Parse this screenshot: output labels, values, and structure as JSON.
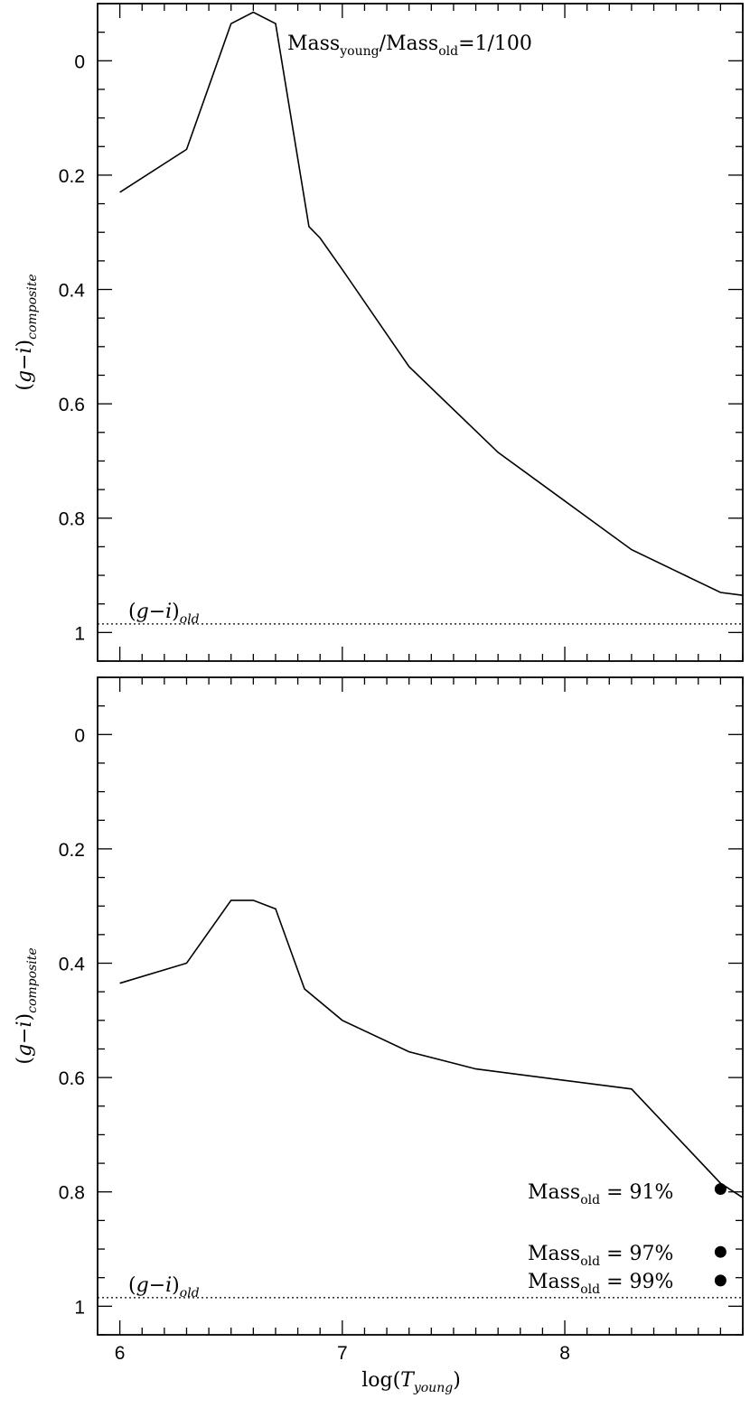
{
  "chart_data": [
    {
      "type": "line",
      "panel": "top",
      "title": "",
      "annotation": {
        "base": "Mass",
        "sub1": "young",
        "mid": "/Mass",
        "sub2": "old",
        "tail": "=1/100"
      },
      "ylabel": {
        "open": "(",
        "g": "g",
        "minus": "−",
        "i": "i",
        "close": ")",
        "sub": "composite"
      },
      "xlabel": "",
      "xlim": [
        5.9,
        8.8
      ],
      "ylim": [
        1.05,
        -0.1
      ],
      "x_ticks": [
        6,
        7,
        8
      ],
      "y_ticks": [
        0,
        0.2,
        0.4,
        0.6,
        0.8,
        1
      ],
      "y_tick_labels": [
        "0",
        "0.2",
        "0.4",
        "0.6",
        "0.8",
        "1"
      ],
      "series": [
        {
          "x": [
            6.0,
            6.3,
            6.5,
            6.6,
            6.7,
            6.85,
            6.9,
            7.0,
            7.3,
            7.7,
            8.0,
            8.3,
            8.7,
            8.8
          ],
          "y": [
            0.23,
            0.155,
            -0.065,
            -0.085,
            -0.065,
            0.29,
            0.31,
            0.365,
            0.535,
            0.685,
            0.77,
            0.855,
            0.93,
            0.935
          ]
        }
      ],
      "reference": {
        "y": 0.985,
        "style": "dotted",
        "label": {
          "open": "(",
          "g": "g",
          "minus": "−",
          "i": "i",
          "close": ")",
          "sub": "old"
        }
      }
    },
    {
      "type": "line",
      "panel": "bottom",
      "title": "",
      "ylabel": {
        "open": "(",
        "g": "g",
        "minus": "−",
        "i": "i",
        "close": ")",
        "sub": "composite"
      },
      "xlabel": {
        "pre": "log(",
        "T": "T",
        "sub": "young",
        "post": ")"
      },
      "xlim": [
        5.9,
        8.8
      ],
      "ylim": [
        1.05,
        -0.1
      ],
      "x_ticks": [
        6,
        7,
        8
      ],
      "x_tick_labels": [
        "6",
        "7",
        "8"
      ],
      "y_ticks": [
        0,
        0.2,
        0.4,
        0.6,
        0.8,
        1
      ],
      "y_tick_labels": [
        "0",
        "0.2",
        "0.4",
        "0.6",
        "0.8",
        "1"
      ],
      "series": [
        {
          "x": [
            6.0,
            6.3,
            6.5,
            6.6,
            6.7,
            6.83,
            7.0,
            7.3,
            7.6,
            8.0,
            8.3,
            8.7,
            8.8
          ],
          "y": [
            0.435,
            0.4,
            0.29,
            0.29,
            0.305,
            0.445,
            0.5,
            0.555,
            0.585,
            0.605,
            0.62,
            0.785,
            0.81
          ]
        }
      ],
      "points": [
        {
          "x": 8.7,
          "y": 0.795,
          "label": {
            "base": "Mass",
            "sub": "old",
            "eq": " = ",
            "value": "91%"
          }
        },
        {
          "x": 8.7,
          "y": 0.905,
          "label": {
            "base": "Mass",
            "sub": "old",
            "eq": " = ",
            "value": "97%"
          }
        },
        {
          "x": 8.7,
          "y": 0.955,
          "label": {
            "base": "Mass",
            "sub": "old",
            "eq": " = ",
            "value": "99%"
          }
        }
      ],
      "reference": {
        "y": 0.985,
        "style": "dotted",
        "label": {
          "open": "(",
          "g": "g",
          "minus": "−",
          "i": "i",
          "close": ")",
          "sub": "old"
        }
      }
    }
  ]
}
